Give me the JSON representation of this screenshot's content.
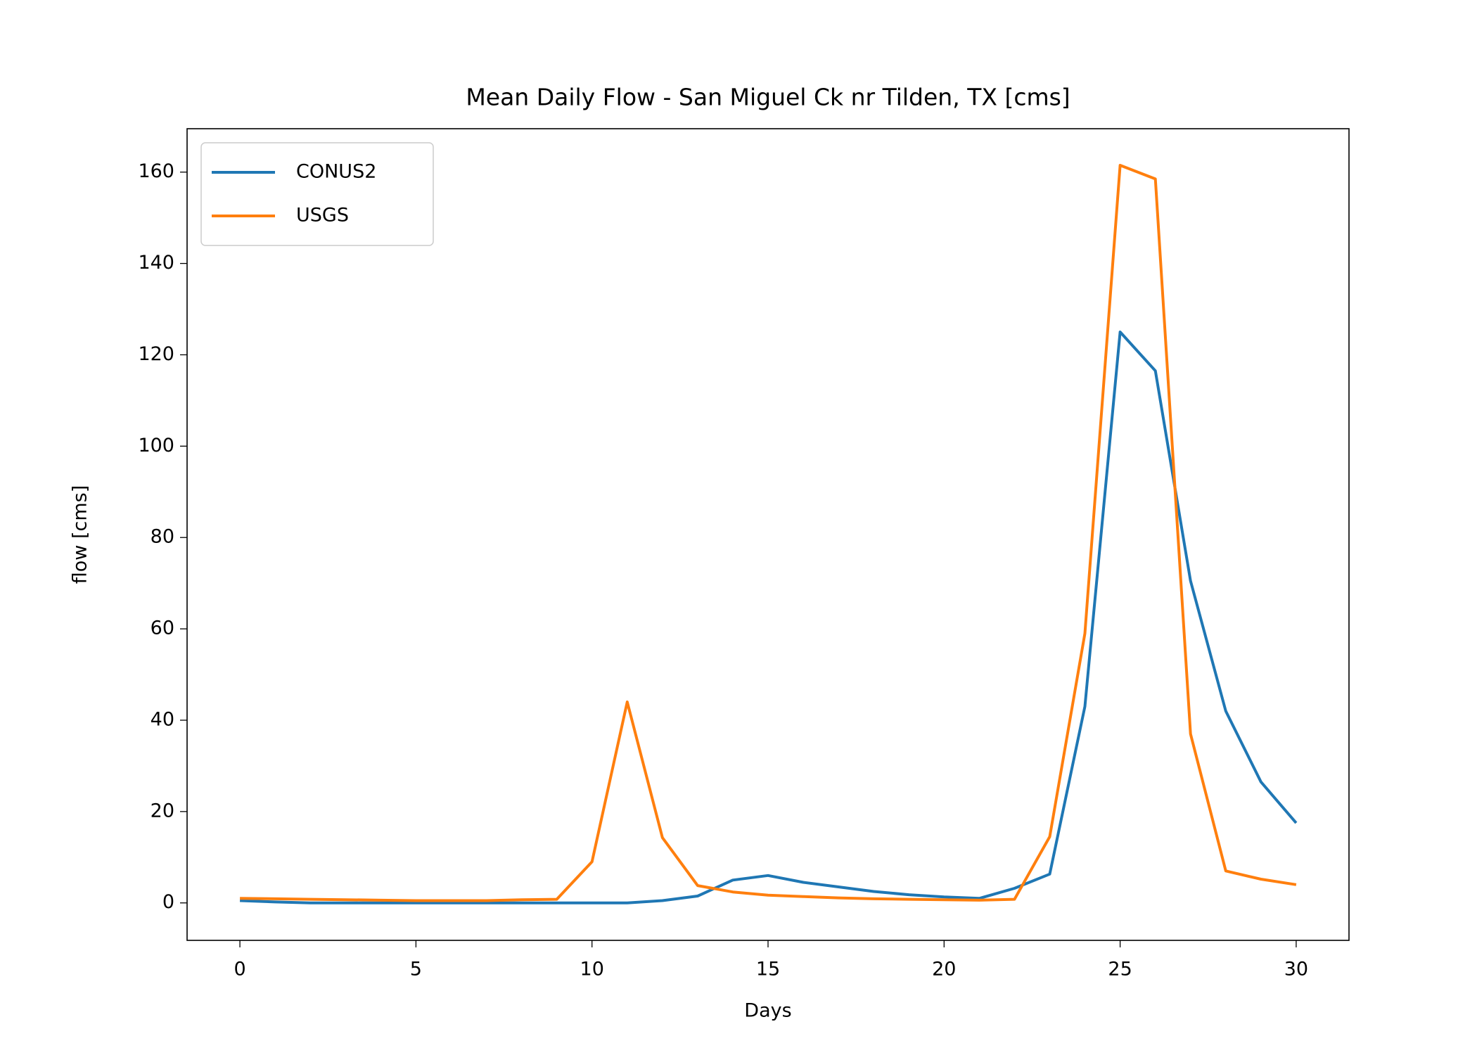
{
  "chart_data": {
    "type": "line",
    "title": "Mean Daily Flow - San Miguel Ck nr Tilden, TX [cms]",
    "x_label": "Days",
    "y_label": "flow [cms]",
    "x": [
      0,
      1,
      2,
      3,
      4,
      5,
      6,
      7,
      8,
      9,
      10,
      11,
      12,
      13,
      14,
      15,
      16,
      17,
      18,
      19,
      20,
      21,
      22,
      23,
      24,
      25,
      26,
      27,
      28,
      29,
      30
    ],
    "series": [
      {
        "name": "CONUS2",
        "color": "#1f77b4",
        "values": [
          0.5,
          0.2,
          0,
          0,
          0,
          0,
          0,
          0,
          0,
          0,
          0,
          0,
          0.5,
          1.5,
          5,
          6,
          4.5,
          3.5,
          2.5,
          1.8,
          1.3,
          1,
          3.2,
          6.3,
          43,
          125,
          116.5,
          70.5,
          42,
          26.5,
          17.5
        ]
      },
      {
        "name": "USGS",
        "color": "#ff7f0e",
        "values": [
          1,
          0.9,
          0.8,
          0.7,
          0.6,
          0.5,
          0.5,
          0.5,
          0.7,
          0.8,
          9,
          44,
          14.3,
          3.8,
          2.4,
          1.7,
          1.4,
          1.1,
          0.9,
          0.8,
          0.7,
          0.6,
          0.8,
          14.5,
          59,
          161.5,
          158.5,
          37,
          7,
          5.2,
          4
        ]
      }
    ],
    "xlim": [
      -1.5,
      31.5
    ],
    "xticks": [
      0,
      5,
      10,
      15,
      20,
      25,
      30
    ],
    "ylim": [
      -8.2,
      169.5
    ],
    "yticks": [
      0,
      20,
      40,
      60,
      80,
      100,
      120,
      140,
      160
    ],
    "legend": "upper left",
    "grid": false
  }
}
